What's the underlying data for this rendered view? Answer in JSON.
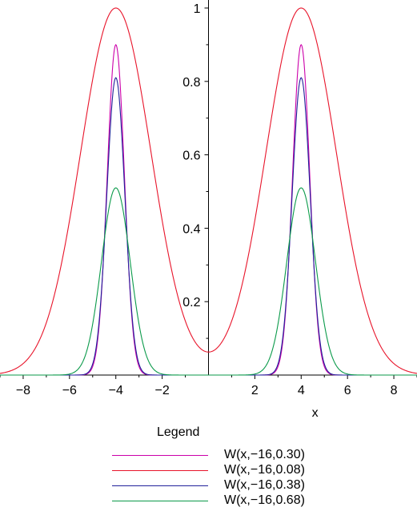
{
  "chart_data": {
    "type": "line",
    "title": "",
    "xlabel": "x",
    "ylabel": "",
    "xlim": [
      -9,
      9
    ],
    "ylim": [
      0,
      1.02
    ],
    "xticks": [
      -8,
      -6,
      -4,
      -2,
      2,
      4,
      6,
      8
    ],
    "xtick_labels": [
      "−8",
      "−6",
      "−4",
      "−2",
      "2",
      "4",
      "6",
      "8"
    ],
    "yticks": [
      0.2,
      0.4,
      0.6,
      0.8,
      1
    ],
    "ytick_labels": [
      "0.2",
      "0.4",
      "0.6",
      "0.8",
      "1"
    ],
    "grid": false,
    "legend_title": "Legend",
    "legend_placement": "bottom",
    "series": [
      {
        "name": "W(x,−16,0.30)",
        "color": "#cc00aa",
        "peak": 0.9,
        "sigma": 0.37,
        "offset": 0.0
      },
      {
        "name": "W(x,−16,0.08)",
        "color": "#e8142a",
        "peak": 1.0,
        "sigma": 1.52,
        "offset": 0.0
      },
      {
        "name": "W(x,−16,0.38)",
        "color": "#20209a",
        "peak": 0.81,
        "sigma": 0.39,
        "offset": 0.02
      },
      {
        "name": "W(x,−16,0.68)",
        "color": "#0a9a4a",
        "peak": 0.51,
        "sigma": 0.62,
        "offset": 0.0
      }
    ]
  }
}
